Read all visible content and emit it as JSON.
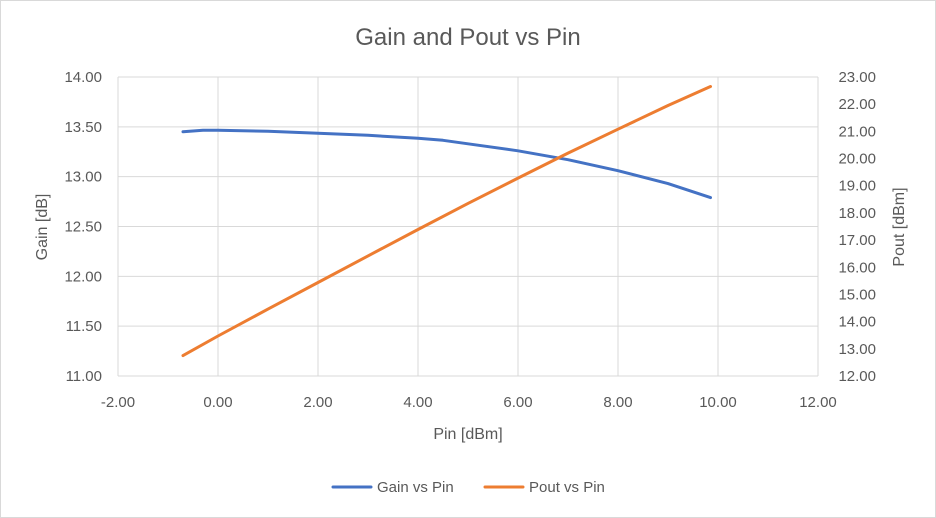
{
  "chart_data": {
    "type": "line",
    "title": "Gain and Pout vs Pin",
    "xlabel": "Pin [dBm]",
    "ylabel_left": "Gain [dB]",
    "ylabel_right": "Pout [dBm]",
    "xlim": [
      -2,
      12
    ],
    "ylim_left": [
      11,
      14
    ],
    "ylim_right": [
      12,
      23
    ],
    "x_ticks": [
      "-2.00",
      "0.00",
      "2.00",
      "4.00",
      "6.00",
      "8.00",
      "10.00",
      "12.00"
    ],
    "y_left_ticks": [
      "11.00",
      "11.50",
      "12.00",
      "12.50",
      "13.00",
      "13.50",
      "14.00"
    ],
    "y_right_ticks": [
      "12.00",
      "13.00",
      "14.00",
      "15.00",
      "16.00",
      "17.00",
      "18.00",
      "19.00",
      "20.00",
      "21.00",
      "22.00",
      "23.00"
    ],
    "grid": true,
    "legend_position": "bottom",
    "series": [
      {
        "name": "Gain vs Pin",
        "axis": "left",
        "color": "#4472c4",
        "x": [
          -0.7,
          -0.3,
          0,
          1,
          2,
          3,
          4,
          4.5,
          5,
          6,
          7,
          8,
          9,
          9.85
        ],
        "y": [
          13.45,
          13.465,
          13.465,
          13.455,
          13.435,
          13.415,
          13.385,
          13.365,
          13.33,
          13.26,
          13.17,
          13.06,
          12.93,
          12.79
        ]
      },
      {
        "name": "Pout vs Pin",
        "axis": "right",
        "color": "#ed7d31",
        "x": [
          -0.7,
          0,
          1,
          2,
          3,
          4,
          5,
          6,
          7,
          8,
          9,
          9.85
        ],
        "y": [
          12.75,
          13.47,
          14.46,
          15.44,
          16.42,
          17.39,
          18.35,
          19.28,
          20.2,
          21.08,
          21.95,
          22.65
        ]
      }
    ]
  }
}
